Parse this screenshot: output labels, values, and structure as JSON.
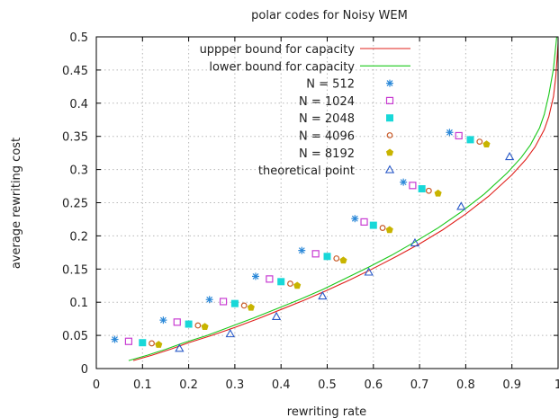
{
  "chart_data": {
    "type": "scatter",
    "title": "polar codes for Noisy WEM",
    "xlabel": "rewriting rate",
    "ylabel": "average rewriting cost",
    "xlim": [
      0,
      1
    ],
    "ylim": [
      0,
      0.5
    ],
    "xticks": [
      "0",
      "0.1",
      "0.2",
      "0.3",
      "0.4",
      "0.5",
      "0.6",
      "0.7",
      "0.8",
      "0.9",
      "1"
    ],
    "yticks": [
      "0",
      "0.05",
      "0.1",
      "0.15",
      "0.2",
      "0.25",
      "0.3",
      "0.35",
      "0.4",
      "0.45",
      "0.5"
    ],
    "grid": true,
    "legend_position": "top-right",
    "colors": {
      "upper": "#e0201b",
      "lower": "#19c819",
      "n512": "#2b88d8",
      "n1024": "#c83cd2",
      "n2048": "#18d8d8",
      "n4096": "#c85a28",
      "n8192": "#c8b400",
      "theory": "#2a5ac8"
    },
    "series": [
      {
        "name": "uppper bound for capacity",
        "kind": "line",
        "color_key": "upper",
        "points": [
          [
            0.08,
            0.012
          ],
          [
            0.12,
            0.02
          ],
          [
            0.16,
            0.029
          ],
          [
            0.2,
            0.039
          ],
          [
            0.25,
            0.05
          ],
          [
            0.3,
            0.062
          ],
          [
            0.35,
            0.075
          ],
          [
            0.4,
            0.089
          ],
          [
            0.45,
            0.103
          ],
          [
            0.5,
            0.118
          ],
          [
            0.55,
            0.134
          ],
          [
            0.6,
            0.151
          ],
          [
            0.65,
            0.169
          ],
          [
            0.7,
            0.188
          ],
          [
            0.75,
            0.209
          ],
          [
            0.8,
            0.233
          ],
          [
            0.85,
            0.26
          ],
          [
            0.9,
            0.292
          ],
          [
            0.93,
            0.315
          ],
          [
            0.95,
            0.334
          ],
          [
            0.97,
            0.36
          ],
          [
            0.98,
            0.38
          ],
          [
            0.99,
            0.41
          ],
          [
            0.995,
            0.44
          ],
          [
            1.0,
            0.49
          ]
        ]
      },
      {
        "name": "lower bound for capacity",
        "kind": "line",
        "color_key": "lower",
        "points": [
          [
            0.07,
            0.012
          ],
          [
            0.11,
            0.02
          ],
          [
            0.15,
            0.029
          ],
          [
            0.19,
            0.039
          ],
          [
            0.24,
            0.05
          ],
          [
            0.29,
            0.063
          ],
          [
            0.34,
            0.076
          ],
          [
            0.39,
            0.09
          ],
          [
            0.44,
            0.104
          ],
          [
            0.49,
            0.119
          ],
          [
            0.54,
            0.136
          ],
          [
            0.59,
            0.153
          ],
          [
            0.64,
            0.171
          ],
          [
            0.69,
            0.191
          ],
          [
            0.74,
            0.212
          ],
          [
            0.79,
            0.236
          ],
          [
            0.84,
            0.263
          ],
          [
            0.89,
            0.295
          ],
          [
            0.92,
            0.318
          ],
          [
            0.94,
            0.337
          ],
          [
            0.96,
            0.363
          ],
          [
            0.97,
            0.383
          ],
          [
            0.98,
            0.413
          ],
          [
            0.99,
            0.452
          ],
          [
            0.997,
            0.5
          ]
        ]
      },
      {
        "name": "N = 512",
        "kind": "marker",
        "marker": "asterisk",
        "color_key": "n512",
        "points": [
          [
            0.04,
            0.044
          ],
          [
            0.145,
            0.073
          ],
          [
            0.245,
            0.104
          ],
          [
            0.345,
            0.139
          ],
          [
            0.445,
            0.178
          ],
          [
            0.56,
            0.226
          ],
          [
            0.665,
            0.281
          ],
          [
            0.765,
            0.356
          ]
        ]
      },
      {
        "name": "N = 1024",
        "kind": "marker",
        "marker": "open-square",
        "color_key": "n1024",
        "points": [
          [
            0.07,
            0.041
          ],
          [
            0.175,
            0.07
          ],
          [
            0.275,
            0.101
          ],
          [
            0.375,
            0.135
          ],
          [
            0.475,
            0.173
          ],
          [
            0.58,
            0.221
          ],
          [
            0.685,
            0.276
          ],
          [
            0.785,
            0.351
          ]
        ]
      },
      {
        "name": "N = 2048",
        "kind": "marker",
        "marker": "filled-square",
        "color_key": "n2048",
        "points": [
          [
            0.1,
            0.039
          ],
          [
            0.2,
            0.067
          ],
          [
            0.3,
            0.098
          ],
          [
            0.4,
            0.131
          ],
          [
            0.5,
            0.169
          ],
          [
            0.6,
            0.216
          ],
          [
            0.705,
            0.271
          ],
          [
            0.81,
            0.345
          ]
        ]
      },
      {
        "name": "N = 4096",
        "kind": "marker",
        "marker": "open-circle",
        "color_key": "n4096",
        "points": [
          [
            0.12,
            0.038
          ],
          [
            0.22,
            0.065
          ],
          [
            0.32,
            0.095
          ],
          [
            0.42,
            0.128
          ],
          [
            0.52,
            0.166
          ],
          [
            0.62,
            0.212
          ],
          [
            0.72,
            0.268
          ],
          [
            0.83,
            0.342
          ]
        ]
      },
      {
        "name": "N = 8192",
        "kind": "marker",
        "marker": "filled-pentagon",
        "color_key": "n8192",
        "points": [
          [
            0.135,
            0.036
          ],
          [
            0.235,
            0.063
          ],
          [
            0.335,
            0.092
          ],
          [
            0.435,
            0.125
          ],
          [
            0.535,
            0.163
          ],
          [
            0.635,
            0.209
          ],
          [
            0.74,
            0.264
          ],
          [
            0.845,
            0.338
          ]
        ]
      },
      {
        "name": "theoretical point",
        "kind": "marker",
        "marker": "open-triangle",
        "color_key": "theory",
        "points": [
          [
            0.18,
            0.03
          ],
          [
            0.29,
            0.052
          ],
          [
            0.39,
            0.078
          ],
          [
            0.49,
            0.109
          ],
          [
            0.59,
            0.145
          ],
          [
            0.69,
            0.189
          ],
          [
            0.79,
            0.244
          ],
          [
            0.895,
            0.319
          ]
        ]
      }
    ]
  }
}
